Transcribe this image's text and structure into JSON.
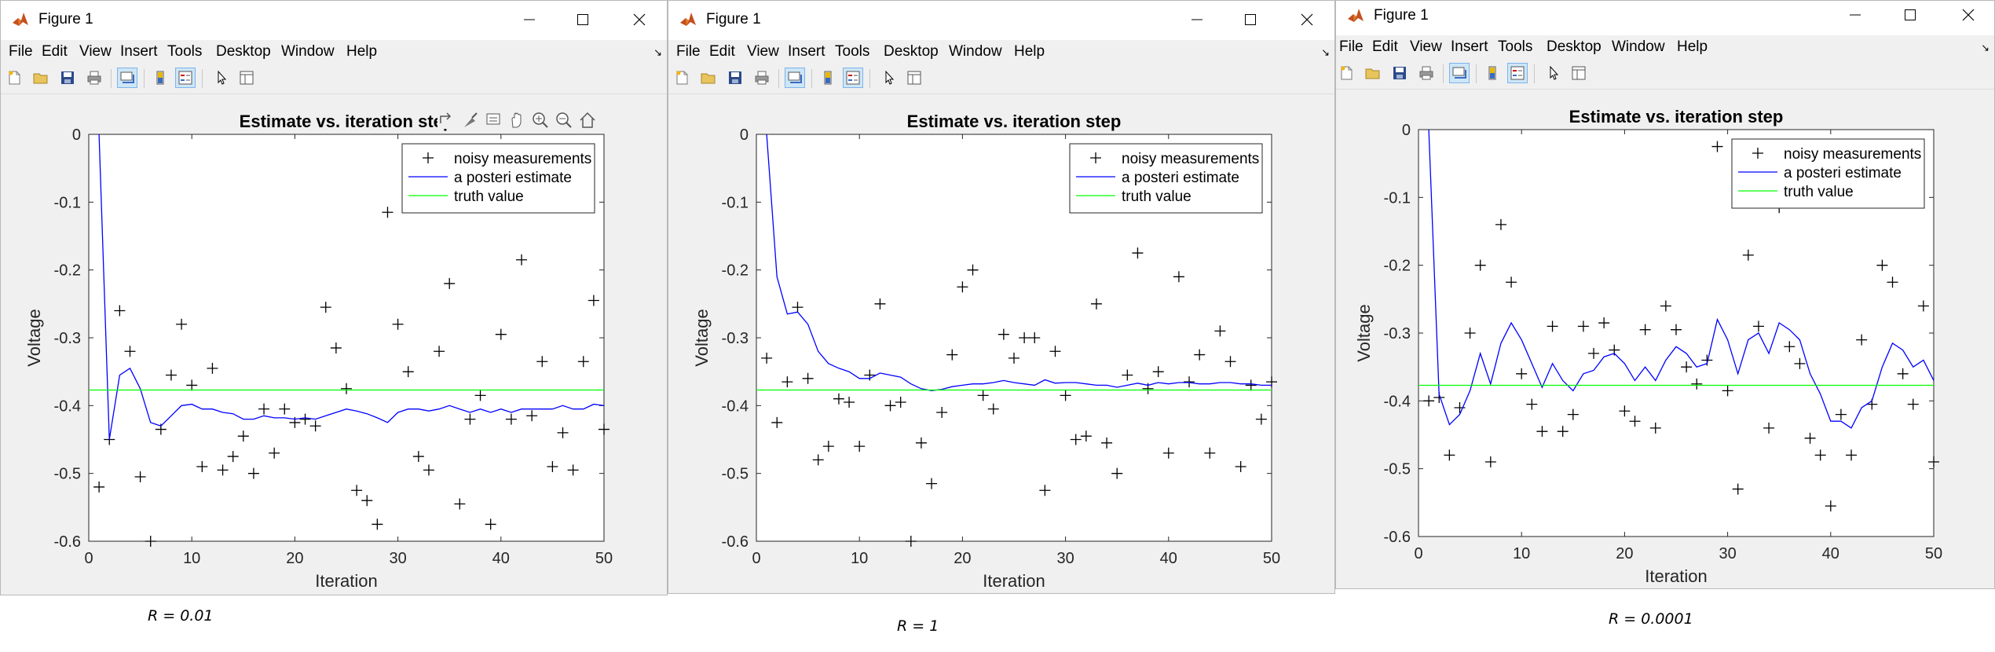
{
  "windows": [
    {
      "title": "Figure 1",
      "menu": [
        "File",
        "Edit",
        "View",
        "Insert",
        "Tools",
        "Desktop",
        "Window",
        "Help"
      ],
      "plot": {
        "title": "Estimate vs. iteration step",
        "xlabel": "Iteration",
        "ylabel": "Voltage",
        "legend": [
          "noisy measurements",
          "a posteri estimate",
          "truth value"
        ]
      },
      "caption": "R = 0.01",
      "axes_toolbar": true
    },
    {
      "title": "Figure 1",
      "menu": [
        "File",
        "Edit",
        "View",
        "Insert",
        "Tools",
        "Desktop",
        "Window",
        "Help"
      ],
      "plot": {
        "title": "Estimate vs. iteration step",
        "xlabel": "Iteration",
        "ylabel": "Voltage",
        "legend": [
          "noisy measurements",
          "a posteri estimate",
          "truth value"
        ]
      },
      "caption": "R = 1",
      "axes_toolbar": false
    },
    {
      "title": "Figure 1",
      "menu": [
        "File",
        "Edit",
        "View",
        "Insert",
        "Tools",
        "Desktop",
        "Window",
        "Help"
      ],
      "plot": {
        "title": "Estimate vs. iteration step",
        "xlabel": "Iteration",
        "ylabel": "Voltage",
        "legend": [
          "noisy measurements",
          "a posteri estimate",
          "truth value"
        ]
      },
      "caption": "R = 0.0001",
      "axes_toolbar": false
    }
  ],
  "colors": {
    "estimate": "#0000ff",
    "truth": "#00ff00",
    "measurement": "#000000"
  },
  "chart_data": [
    {
      "type": "line",
      "title": "Estimate vs. iteration step",
      "xlabel": "Iteration",
      "ylabel": "Voltage",
      "xlim": [
        0,
        50
      ],
      "ylim": [
        -0.6,
        0
      ],
      "xticks": [
        0,
        10,
        20,
        30,
        40,
        50
      ],
      "yticks": [
        0,
        -0.1,
        -0.2,
        -0.3,
        -0.4,
        -0.5,
        -0.6
      ],
      "legend_position": "top-right",
      "grid": false,
      "series": [
        {
          "name": "noisy measurements",
          "style": "marker",
          "x": [
            1,
            2,
            3,
            4,
            5,
            6,
            7,
            8,
            9,
            10,
            11,
            12,
            13,
            14,
            15,
            16,
            17,
            18,
            19,
            20,
            21,
            22,
            23,
            24,
            25,
            26,
            27,
            28,
            29,
            30,
            31,
            32,
            33,
            34,
            35,
            36,
            37,
            38,
            39,
            40,
            41,
            42,
            43,
            44,
            45,
            46,
            47,
            48,
            49,
            50
          ],
          "y": [
            -0.52,
            -0.45,
            -0.26,
            -0.32,
            -0.505,
            -0.6,
            -0.435,
            -0.355,
            -0.28,
            -0.37,
            -0.49,
            -0.345,
            -0.495,
            -0.475,
            -0.445,
            -0.5,
            -0.405,
            -0.47,
            -0.405,
            -0.425,
            -0.42,
            -0.43,
            -0.255,
            -0.315,
            -0.375,
            -0.525,
            -0.54,
            -0.575,
            -0.115,
            -0.28,
            -0.35,
            -0.475,
            -0.495,
            -0.32,
            -0.22,
            -0.545,
            -0.42,
            -0.385,
            -0.575,
            -0.295,
            -0.42,
            -0.185,
            -0.415,
            -0.335,
            -0.49,
            -0.44,
            -0.495,
            -0.335,
            -0.245,
            -0.435
          ]
        },
        {
          "name": "a posteri estimate",
          "style": "line",
          "x": [
            1,
            2,
            3,
            4,
            5,
            6,
            7,
            8,
            9,
            10,
            11,
            12,
            13,
            14,
            15,
            16,
            17,
            18,
            19,
            20,
            21,
            22,
            23,
            24,
            25,
            26,
            27,
            28,
            29,
            30,
            31,
            32,
            33,
            34,
            35,
            36,
            37,
            38,
            39,
            40,
            41,
            42,
            43,
            44,
            45,
            46,
            47,
            48,
            49,
            50
          ],
          "y": [
            0,
            -0.45,
            -0.355,
            -0.345,
            -0.375,
            -0.425,
            -0.43,
            -0.415,
            -0.4,
            -0.398,
            -0.405,
            -0.405,
            -0.41,
            -0.412,
            -0.42,
            -0.42,
            -0.415,
            -0.418,
            -0.418,
            -0.42,
            -0.418,
            -0.42,
            -0.415,
            -0.41,
            -0.405,
            -0.408,
            -0.412,
            -0.418,
            -0.425,
            -0.41,
            -0.405,
            -0.405,
            -0.408,
            -0.405,
            -0.4,
            -0.405,
            -0.41,
            -0.405,
            -0.41,
            -0.405,
            -0.41,
            -0.405,
            -0.405,
            -0.405,
            -0.405,
            -0.4,
            -0.405,
            -0.405,
            -0.398,
            -0.4
          ]
        },
        {
          "name": "truth value",
          "style": "line",
          "x": [
            0,
            50
          ],
          "y": [
            -0.377,
            -0.377
          ]
        }
      ]
    },
    {
      "type": "line",
      "title": "Estimate vs. iteration step",
      "xlabel": "Iteration",
      "ylabel": "Voltage",
      "xlim": [
        0,
        50
      ],
      "ylim": [
        -0.6,
        0
      ],
      "xticks": [
        0,
        10,
        20,
        30,
        40,
        50
      ],
      "yticks": [
        0,
        -0.1,
        -0.2,
        -0.3,
        -0.4,
        -0.5,
        -0.6
      ],
      "legend_position": "top-right",
      "grid": false,
      "series": [
        {
          "name": "noisy measurements",
          "style": "marker",
          "x": [
            1,
            2,
            3,
            4,
            5,
            6,
            7,
            8,
            9,
            10,
            11,
            12,
            13,
            14,
            15,
            16,
            17,
            18,
            19,
            20,
            21,
            22,
            23,
            24,
            25,
            26,
            27,
            28,
            29,
            30,
            31,
            32,
            33,
            34,
            35,
            36,
            37,
            38,
            39,
            40,
            41,
            42,
            43,
            44,
            45,
            46,
            47,
            48,
            49,
            50
          ],
          "y": [
            -0.33,
            -0.425,
            -0.365,
            -0.255,
            -0.36,
            -0.48,
            -0.46,
            -0.39,
            -0.395,
            -0.46,
            -0.355,
            -0.25,
            -0.4,
            -0.395,
            -0.6,
            -0.455,
            -0.515,
            -0.41,
            -0.325,
            -0.225,
            -0.2,
            -0.385,
            -0.405,
            -0.295,
            -0.33,
            -0.3,
            -0.3,
            -0.525,
            -0.32,
            -0.385,
            -0.45,
            -0.445,
            -0.25,
            -0.455,
            -0.5,
            -0.355,
            -0.175,
            -0.375,
            -0.35,
            -0.47,
            -0.21,
            -0.365,
            -0.325,
            -0.47,
            -0.29,
            -0.335,
            -0.49,
            -0.37,
            -0.42,
            -0.365
          ]
        },
        {
          "name": "a posteri estimate",
          "style": "line",
          "x": [
            1,
            2,
            3,
            4,
            5,
            6,
            7,
            8,
            9,
            10,
            11,
            12,
            13,
            14,
            15,
            16,
            17,
            18,
            19,
            20,
            21,
            22,
            23,
            24,
            25,
            26,
            27,
            28,
            29,
            30,
            31,
            32,
            33,
            34,
            35,
            36,
            37,
            38,
            39,
            40,
            41,
            42,
            43,
            44,
            45,
            46,
            47,
            48,
            49,
            50
          ],
          "y": [
            0,
            -0.21,
            -0.265,
            -0.262,
            -0.28,
            -0.32,
            -0.338,
            -0.345,
            -0.35,
            -0.36,
            -0.36,
            -0.352,
            -0.355,
            -0.358,
            -0.368,
            -0.375,
            -0.378,
            -0.376,
            -0.372,
            -0.37,
            -0.368,
            -0.368,
            -0.366,
            -0.363,
            -0.366,
            -0.368,
            -0.37,
            -0.362,
            -0.367,
            -0.366,
            -0.366,
            -0.368,
            -0.37,
            -0.37,
            -0.373,
            -0.37,
            -0.367,
            -0.37,
            -0.366,
            -0.368,
            -0.366,
            -0.366,
            -0.368,
            -0.368,
            -0.366,
            -0.366,
            -0.368,
            -0.368,
            -0.37,
            -0.37
          ]
        },
        {
          "name": "truth value",
          "style": "line",
          "x": [
            0,
            50
          ],
          "y": [
            -0.377,
            -0.377
          ]
        }
      ]
    },
    {
      "type": "line",
      "title": "Estimate vs. iteration step",
      "xlabel": "Iteration",
      "ylabel": "Voltage",
      "xlim": [
        0,
        50
      ],
      "ylim": [
        -0.6,
        0
      ],
      "xticks": [
        0,
        10,
        20,
        30,
        40,
        50
      ],
      "yticks": [
        0,
        -0.1,
        -0.2,
        -0.3,
        -0.4,
        -0.5,
        -0.6
      ],
      "legend_position": "top-right",
      "grid": false,
      "series": [
        {
          "name": "noisy measurements",
          "style": "marker",
          "x": [
            1,
            2,
            3,
            4,
            5,
            6,
            7,
            8,
            9,
            10,
            11,
            12,
            13,
            14,
            15,
            16,
            17,
            18,
            19,
            20,
            21,
            22,
            23,
            24,
            25,
            26,
            27,
            28,
            29,
            30,
            31,
            32,
            33,
            34,
            35,
            36,
            37,
            38,
            39,
            40,
            41,
            42,
            43,
            44,
            45,
            46,
            47,
            48,
            49,
            50
          ],
          "y": [
            -0.4,
            -0.395,
            -0.48,
            -0.41,
            -0.3,
            -0.2,
            -0.49,
            -0.14,
            -0.225,
            -0.36,
            -0.405,
            -0.445,
            -0.29,
            -0.445,
            -0.42,
            -0.29,
            -0.33,
            -0.285,
            -0.325,
            -0.415,
            -0.43,
            -0.295,
            -0.44,
            -0.26,
            -0.295,
            -0.35,
            -0.375,
            -0.34,
            -0.025,
            -0.385,
            -0.53,
            -0.185,
            -0.29,
            -0.44,
            -0.115,
            -0.32,
            -0.345,
            -0.455,
            -0.48,
            -0.555,
            -0.42,
            -0.48,
            -0.31,
            -0.405,
            -0.2,
            -0.225,
            -0.36,
            -0.405,
            -0.26,
            -0.49
          ]
        },
        {
          "name": "a posteri estimate",
          "style": "line",
          "x": [
            1,
            2,
            3,
            4,
            5,
            6,
            7,
            8,
            9,
            10,
            11,
            12,
            13,
            14,
            15,
            16,
            17,
            18,
            19,
            20,
            21,
            22,
            23,
            24,
            25,
            26,
            27,
            28,
            29,
            30,
            31,
            32,
            33,
            34,
            35,
            36,
            37,
            38,
            39,
            40,
            41,
            42,
            43,
            44,
            45,
            46,
            47,
            48,
            49,
            50
          ],
          "y": [
            0,
            -0.39,
            -0.435,
            -0.42,
            -0.385,
            -0.33,
            -0.375,
            -0.315,
            -0.285,
            -0.31,
            -0.345,
            -0.38,
            -0.345,
            -0.37,
            -0.385,
            -0.36,
            -0.355,
            -0.335,
            -0.33,
            -0.345,
            -0.37,
            -0.35,
            -0.37,
            -0.34,
            -0.32,
            -0.33,
            -0.35,
            -0.345,
            -0.28,
            -0.31,
            -0.36,
            -0.31,
            -0.3,
            -0.33,
            -0.285,
            -0.295,
            -0.31,
            -0.36,
            -0.39,
            -0.43,
            -0.43,
            -0.44,
            -0.41,
            -0.4,
            -0.35,
            -0.315,
            -0.325,
            -0.35,
            -0.34,
            -0.37
          ]
        },
        {
          "name": "truth value",
          "style": "line",
          "x": [
            0,
            50
          ],
          "y": [
            -0.377,
            -0.377
          ]
        }
      ]
    }
  ]
}
